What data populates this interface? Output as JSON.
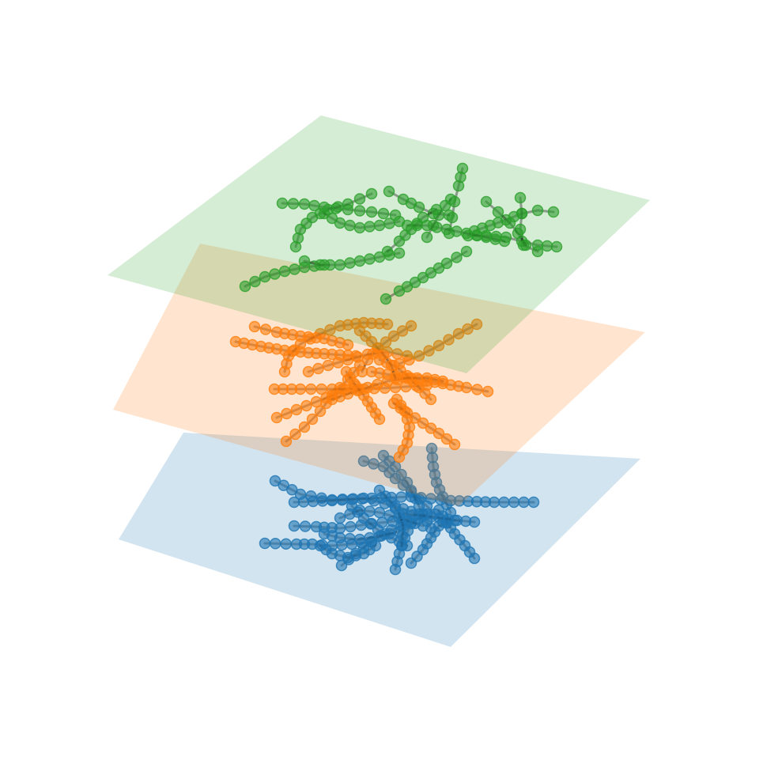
{
  "figure": {
    "kind": "stacked-layer-network-3d",
    "background": "#ffffff",
    "edge_color": "#000000",
    "layers": [
      {
        "id": "layer-bottom",
        "color": "#1f77b4",
        "plane_opacity": 0.2,
        "spread": "dense"
      },
      {
        "id": "layer-middle",
        "color": "#ff7f0e",
        "plane_opacity": 0.2,
        "spread": "medium"
      },
      {
        "id": "layer-top",
        "color": "#2ca02c",
        "plane_opacity": 0.2,
        "spread": "sparse"
      }
    ]
  }
}
